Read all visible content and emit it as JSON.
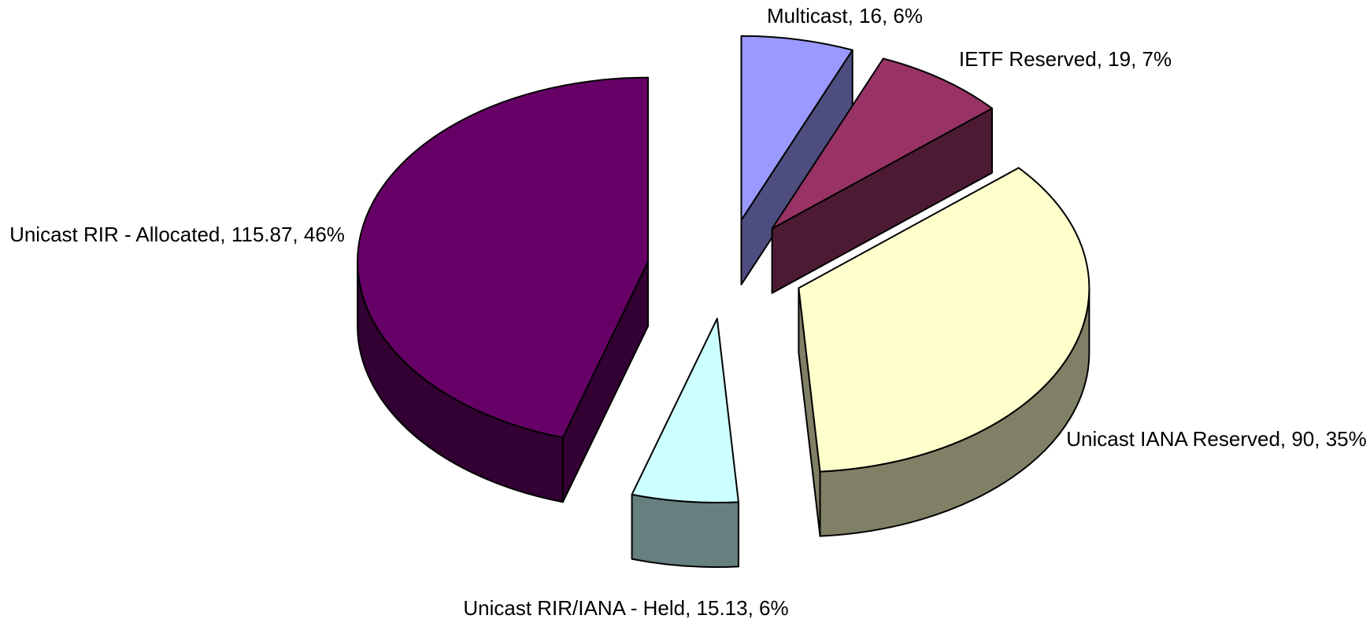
{
  "chart_data": {
    "type": "pie3d",
    "categories": [
      "Multicast",
      "IETF Reserved",
      "Unicast IANA Reserved",
      "Unicast RIR/IANA - Held",
      "Unicast RIR - Allocated"
    ],
    "values": [
      16,
      19,
      90,
      15.13,
      115.87
    ],
    "value_labels": [
      "Multicast, 16, 6%",
      "IETF Reserved, 19, 7%",
      "Unicast IANA Reserved, 90, 35%",
      "Unicast RIR/IANA - Held, 15.13, 6%",
      "Unicast RIR - Allocated, 115.87, 46%"
    ],
    "colors": [
      "#9999ff",
      "#993366",
      "#ffffcc",
      "#ccffff",
      "#660066"
    ]
  }
}
